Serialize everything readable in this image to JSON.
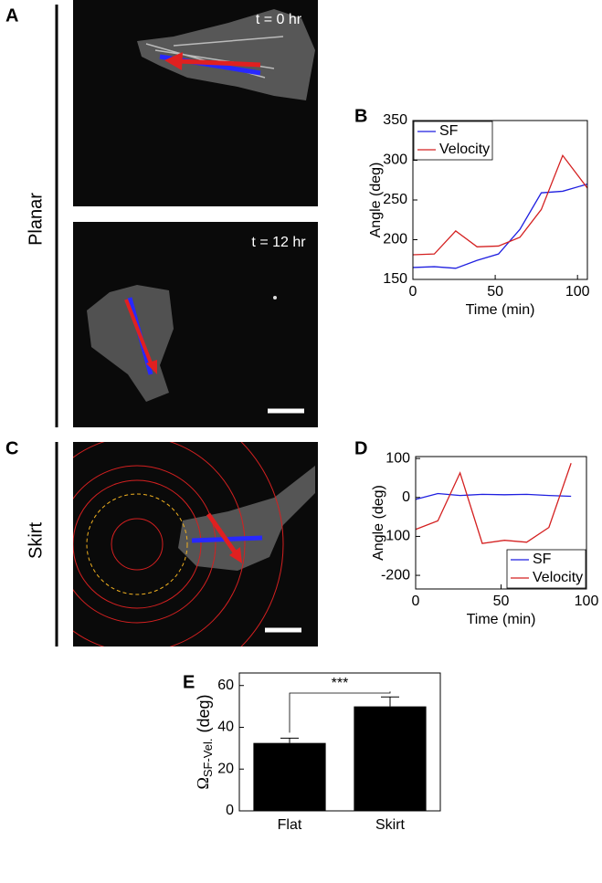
{
  "panels": {
    "A": {
      "label": "A",
      "condition": "Planar",
      "time_top": "t = 0 hr",
      "time_bottom": "t = 12 hr"
    },
    "C": {
      "label": "C",
      "condition": "Skirt"
    }
  },
  "chart_data": [
    {
      "type": "line",
      "label": "B",
      "ylabel": "Angle (deg)",
      "xlabel": "Time (min)",
      "x": [
        0,
        13,
        26,
        39,
        52,
        65,
        78,
        91,
        106
      ],
      "series": [
        {
          "name": "SF",
          "color": "#1f1fe0",
          "values": [
            165,
            166,
            164,
            174,
            182,
            213,
            259,
            261,
            270
          ]
        },
        {
          "name": "Velocity",
          "color": "#d42020",
          "values": [
            181,
            182,
            211,
            191,
            192,
            203,
            238,
            306,
            265
          ]
        }
      ],
      "xlim": [
        0,
        106
      ],
      "xticks": [
        0,
        50,
        100
      ],
      "ylim": [
        150,
        350
      ],
      "yticks": [
        150,
        200,
        250,
        300,
        350
      ],
      "legend": "upper left"
    },
    {
      "type": "line",
      "label": "D",
      "ylabel": "Angle (deg)",
      "xlabel": "Time (min)",
      "x": [
        0,
        13,
        26,
        39,
        52,
        65,
        78,
        91
      ],
      "series": [
        {
          "name": "SF",
          "color": "#1f1fe0",
          "values": [
            -5,
            10,
            5,
            8,
            7,
            8,
            5,
            3
          ]
        },
        {
          "name": "Velocity",
          "color": "#d42020",
          "values": [
            -82,
            -60,
            63,
            -118,
            -110,
            -115,
            -77,
            88
          ]
        }
      ],
      "xlim": [
        0,
        100
      ],
      "xticks": [
        0,
        50,
        100
      ],
      "ylim": [
        -235,
        105
      ],
      "yticks": [
        -200,
        -100,
        0,
        100
      ],
      "legend": "lower right"
    },
    {
      "type": "bar",
      "label": "E",
      "ylabel": "Ω",
      "ylabel_sub": "SF-Vel.",
      "ylabel_unit": "(deg)",
      "categories": [
        "Flat",
        "Skirt"
      ],
      "values": [
        32.5,
        50
      ],
      "errors": [
        2.3,
        4.5
      ],
      "color": "#000000",
      "significance": "***",
      "ylim": [
        0,
        66
      ],
      "yticks": [
        0,
        20,
        40,
        60
      ]
    }
  ]
}
